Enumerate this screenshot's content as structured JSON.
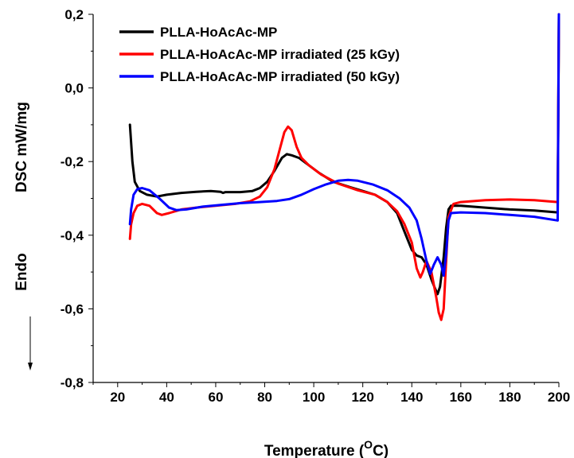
{
  "chart_data": {
    "type": "line",
    "title": "",
    "xlabel": "Temperature (",
    "xlabel_sup": "O",
    "xlabel_suffix": "C)",
    "ylabel": "DSC mW/mg",
    "endo_label": "Endo",
    "xlim": [
      10,
      200
    ],
    "ylim": [
      -0.8,
      0.2
    ],
    "xticks": [
      20,
      40,
      60,
      80,
      100,
      120,
      140,
      160,
      180,
      200
    ],
    "xtick_labels": [
      "20",
      "40",
      "60",
      "80",
      "100",
      "120",
      "140",
      "160",
      "180",
      "200"
    ],
    "yticks": [
      -0.8,
      -0.6,
      -0.4,
      -0.2,
      0.0,
      0.2
    ],
    "ytick_labels": [
      "-0,8",
      "-0,6",
      "-0,4",
      "-0,2",
      "0,0",
      "0,2"
    ],
    "grid": false,
    "legend_position": "top-left",
    "series": [
      {
        "name": "PLLA-HoAcAc-MP",
        "color": "#000000",
        "points": [
          [
            25,
            -0.1
          ],
          [
            26,
            -0.2
          ],
          [
            27,
            -0.255
          ],
          [
            29,
            -0.28
          ],
          [
            32,
            -0.29
          ],
          [
            36,
            -0.295
          ],
          [
            40,
            -0.29
          ],
          [
            46,
            -0.285
          ],
          [
            52,
            -0.282
          ],
          [
            58,
            -0.28
          ],
          [
            62,
            -0.282
          ],
          [
            63,
            -0.285
          ],
          [
            64,
            -0.283
          ],
          [
            70,
            -0.283
          ],
          [
            75,
            -0.28
          ],
          [
            78,
            -0.272
          ],
          [
            81,
            -0.255
          ],
          [
            84,
            -0.225
          ],
          [
            87,
            -0.19
          ],
          [
            89,
            -0.18
          ],
          [
            91,
            -0.183
          ],
          [
            94,
            -0.19
          ],
          [
            98,
            -0.21
          ],
          [
            102,
            -0.23
          ],
          [
            108,
            -0.255
          ],
          [
            115,
            -0.27
          ],
          [
            120,
            -0.28
          ],
          [
            125,
            -0.29
          ],
          [
            130,
            -0.31
          ],
          [
            134,
            -0.34
          ],
          [
            137,
            -0.39
          ],
          [
            140,
            -0.44
          ],
          [
            142,
            -0.455
          ],
          [
            144,
            -0.46
          ],
          [
            146,
            -0.48
          ],
          [
            148,
            -0.52
          ],
          [
            149.5,
            -0.545
          ],
          [
            150.5,
            -0.56
          ],
          [
            151.5,
            -0.54
          ],
          [
            153,
            -0.46
          ],
          [
            154,
            -0.38
          ],
          [
            155,
            -0.33
          ],
          [
            156,
            -0.32
          ],
          [
            160,
            -0.32
          ],
          [
            170,
            -0.325
          ],
          [
            180,
            -0.33
          ],
          [
            190,
            -0.333
          ],
          [
            199.5,
            -0.338
          ],
          [
            200,
            0.2
          ]
        ]
      },
      {
        "name": "PLLA-HoAcAc-MP irradiated (25 kGy)",
        "color": "#ff0000",
        "points": [
          [
            25,
            -0.41
          ],
          [
            25.5,
            -0.37
          ],
          [
            26.5,
            -0.34
          ],
          [
            28,
            -0.32
          ],
          [
            30,
            -0.315
          ],
          [
            33,
            -0.32
          ],
          [
            36,
            -0.34
          ],
          [
            38,
            -0.345
          ],
          [
            41,
            -0.34
          ],
          [
            46,
            -0.33
          ],
          [
            52,
            -0.325
          ],
          [
            60,
            -0.32
          ],
          [
            68,
            -0.315
          ],
          [
            74,
            -0.308
          ],
          [
            78,
            -0.295
          ],
          [
            81,
            -0.27
          ],
          [
            84,
            -0.22
          ],
          [
            86,
            -0.17
          ],
          [
            88,
            -0.12
          ],
          [
            89.5,
            -0.105
          ],
          [
            91,
            -0.115
          ],
          [
            93,
            -0.16
          ],
          [
            95,
            -0.19
          ],
          [
            98,
            -0.21
          ],
          [
            103,
            -0.235
          ],
          [
            110,
            -0.26
          ],
          [
            118,
            -0.278
          ],
          [
            125,
            -0.29
          ],
          [
            130,
            -0.31
          ],
          [
            134,
            -0.335
          ],
          [
            137,
            -0.37
          ],
          [
            140,
            -0.42
          ],
          [
            142,
            -0.49
          ],
          [
            143.5,
            -0.515
          ],
          [
            144.5,
            -0.5
          ],
          [
            146,
            -0.47
          ],
          [
            148,
            -0.5
          ],
          [
            150,
            -0.57
          ],
          [
            151,
            -0.61
          ],
          [
            152,
            -0.63
          ],
          [
            153,
            -0.6
          ],
          [
            154,
            -0.47
          ],
          [
            155,
            -0.35
          ],
          [
            157,
            -0.315
          ],
          [
            160,
            -0.31
          ],
          [
            170,
            -0.305
          ],
          [
            180,
            -0.303
          ],
          [
            190,
            -0.305
          ],
          [
            199.5,
            -0.31
          ],
          [
            200,
            0.2
          ]
        ]
      },
      {
        "name": "PLLA-HoAcAc-MP irradiated (50 kGy)",
        "color": "#0000ff",
        "points": [
          [
            25,
            -0.37
          ],
          [
            25.5,
            -0.33
          ],
          [
            26.5,
            -0.29
          ],
          [
            28,
            -0.275
          ],
          [
            30,
            -0.272
          ],
          [
            33,
            -0.278
          ],
          [
            37,
            -0.3
          ],
          [
            41,
            -0.325
          ],
          [
            44,
            -0.332
          ],
          [
            48,
            -0.33
          ],
          [
            55,
            -0.322
          ],
          [
            62,
            -0.318
          ],
          [
            70,
            -0.313
          ],
          [
            78,
            -0.31
          ],
          [
            85,
            -0.307
          ],
          [
            90,
            -0.302
          ],
          [
            95,
            -0.29
          ],
          [
            100,
            -0.275
          ],
          [
            105,
            -0.262
          ],
          [
            110,
            -0.252
          ],
          [
            114,
            -0.25
          ],
          [
            118,
            -0.252
          ],
          [
            124,
            -0.262
          ],
          [
            130,
            -0.278
          ],
          [
            135,
            -0.3
          ],
          [
            139,
            -0.325
          ],
          [
            142,
            -0.36
          ],
          [
            144,
            -0.41
          ],
          [
            146,
            -0.47
          ],
          [
            147.5,
            -0.505
          ],
          [
            149,
            -0.48
          ],
          [
            150.5,
            -0.46
          ],
          [
            152,
            -0.48
          ],
          [
            153,
            -0.51
          ],
          [
            154,
            -0.45
          ],
          [
            155,
            -0.36
          ],
          [
            156,
            -0.34
          ],
          [
            160,
            -0.338
          ],
          [
            170,
            -0.34
          ],
          [
            180,
            -0.345
          ],
          [
            190,
            -0.35
          ],
          [
            199.5,
            -0.36
          ],
          [
            200,
            0.2
          ]
        ]
      }
    ]
  }
}
